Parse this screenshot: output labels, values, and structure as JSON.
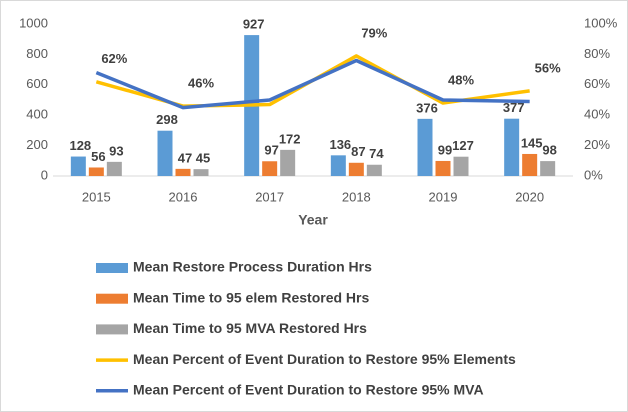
{
  "chart_data": {
    "type": "bar",
    "x_label": "Year",
    "categories": [
      "2015",
      "2016",
      "2017",
      "2018",
      "2019",
      "2020"
    ],
    "series": [
      {
        "name": "Mean Restore Process Duration Hrs",
        "type": "bar",
        "color": "#5b9bd5",
        "values": [
          128,
          298,
          927,
          136,
          376,
          377
        ]
      },
      {
        "name": "Mean Time to 95 elem Restored Hrs",
        "type": "bar",
        "color": "#ed7d31",
        "values": [
          56,
          47,
          97,
          87,
          99,
          145
        ]
      },
      {
        "name": "Mean Time to 95 MVA Restored Hrs",
        "type": "bar",
        "color": "#a5a5a5",
        "values": [
          93,
          45,
          172,
          74,
          127,
          98
        ]
      },
      {
        "name": "Mean Percent of Event Duration to Restore 95% Elements",
        "type": "line",
        "axis": "y2",
        "color": "#ffc000",
        "values": [
          62,
          46,
          47,
          79,
          48,
          56
        ],
        "value_labels": [
          "62%",
          "46%",
          null,
          "79%",
          "48%",
          "56%"
        ]
      },
      {
        "name": "Mean Percent of Event Duration to Restore 95% MVA",
        "type": "line",
        "axis": "y2",
        "color": "#4472c4",
        "values": [
          68,
          45,
          50,
          76,
          50,
          49
        ]
      }
    ],
    "ylim": [
      0,
      1000
    ],
    "yticks": [
      0,
      200,
      400,
      600,
      800,
      1000
    ],
    "y2lim": [
      0,
      100
    ],
    "y2ticks": [
      {
        "value": 0,
        "label": "0%"
      },
      {
        "value": 20,
        "label": "20%"
      },
      {
        "value": 40,
        "label": "40%"
      },
      {
        "value": 60,
        "label": "60%"
      },
      {
        "value": 80,
        "label": "80%"
      },
      {
        "value": 100,
        "label": "100%"
      }
    ],
    "legend": "bottom"
  }
}
